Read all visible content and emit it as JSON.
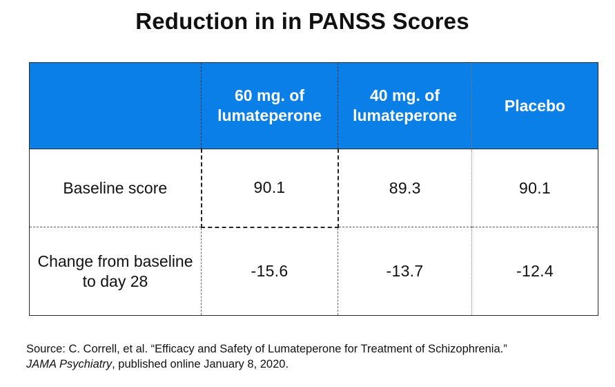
{
  "title": "Reduction in in PANSS Scores",
  "table": {
    "headers": [
      "",
      "60 mg. of lumateperone",
      "40 mg. of lumateperone",
      "Placebo"
    ],
    "header_color": "#0a7fe8",
    "rows": [
      {
        "label": "Baseline score",
        "values": [
          "90.1",
          "89.3",
          "90.1"
        ]
      },
      {
        "label": "Change from baseline to day 28",
        "values": [
          "-15.6",
          "-13.7",
          "-12.4"
        ]
      }
    ]
  },
  "source": {
    "line1": "Source:  C. Correll, et al. “Efficacy and Safety of Lumateperone for Treatment of Schizophrenia.”",
    "journal": "JAMA Psychiatry",
    "line2_rest": ", published online January 8, 2020."
  }
}
